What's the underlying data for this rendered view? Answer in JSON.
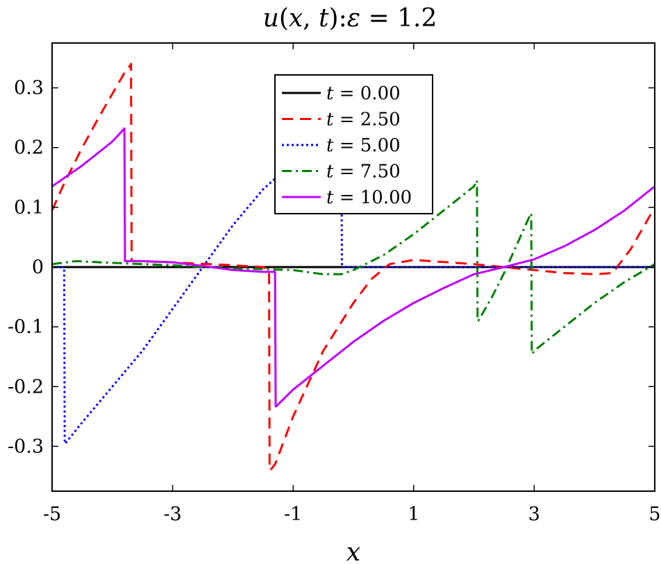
{
  "chart_data": {
    "type": "line",
    "title": "u(x,t): ε = 1.2",
    "title_parts": {
      "func": "u",
      "args_open": "(",
      "x": "x",
      "comma": ", ",
      "t": "t",
      "args_close": "):",
      "eps": "ε",
      "eq": " = 1.2"
    },
    "xlabel": "x",
    "ylabel": "",
    "xlim": [
      -5,
      5
    ],
    "ylim": [
      -0.375,
      0.375
    ],
    "xticks": [
      -5,
      -3,
      -1,
      1,
      3,
      5
    ],
    "xtick_labels": [
      "-5",
      "-3",
      "-1",
      "1",
      "3",
      "5"
    ],
    "yticks": [
      0.3,
      0.2,
      0.1,
      0,
      -0.1,
      -0.2,
      -0.3
    ],
    "ytick_labels": [
      "0.3",
      "0.2",
      "0.1",
      "0",
      "-0.1",
      "-0.2",
      "-0.3"
    ],
    "grid": false,
    "legend_position": "top-center",
    "series": [
      {
        "name": "t = 0.00",
        "label_var": "t",
        "label_val": " = 0.00",
        "color": "#000000",
        "dash": "solid",
        "x": [
          -5,
          5
        ],
        "y": [
          0,
          0
        ]
      },
      {
        "name": "t = 2.50",
        "label_var": "t",
        "label_val": " = 2.50",
        "color": "#ff0000",
        "dash": "dashed",
        "x": [
          -5,
          -4.8,
          -4.5,
          -4.2,
          -4.0,
          -3.8,
          -3.7,
          -3.69,
          -3.68,
          -3.6,
          -3.0,
          -2.0,
          -1.5,
          -1.4,
          -1.39,
          -1.38,
          -1.3,
          -1.0,
          -0.5,
          0,
          0.3,
          0.6,
          1.0,
          2.0,
          3.0,
          3.5,
          4.0,
          4.3,
          4.6,
          5.0
        ],
        "y": [
          0.095,
          0.14,
          0.2,
          0.255,
          0.29,
          0.325,
          0.338,
          0.34,
          0.01,
          0.01,
          0.008,
          0.003,
          0.0,
          -0.005,
          -0.34,
          -0.34,
          -0.33,
          -0.25,
          -0.14,
          -0.06,
          -0.02,
          0.005,
          0.012,
          0.005,
          -0.005,
          -0.01,
          -0.012,
          -0.01,
          0.03,
          0.1
        ]
      },
      {
        "name": "t = 5.00",
        "label_var": "t",
        "label_val": " = 5.00",
        "color": "#0000ff",
        "dash": "dotted",
        "x": [
          -5,
          -4.8,
          -4.79,
          -4.78,
          -4.5,
          -4.0,
          -3.5,
          -3.0,
          -2.5,
          -2.0,
          -1.5,
          -1.0,
          -0.5,
          -0.2,
          -0.19,
          -0.18,
          0.5,
          2.0,
          4.0,
          5.0
        ],
        "y": [
          0,
          0,
          -0.295,
          -0.295,
          -0.26,
          -0.2,
          -0.14,
          -0.07,
          0.0,
          0.07,
          0.13,
          0.175,
          0.21,
          0.23,
          0.0,
          0.0,
          0.0,
          0.0,
          0.0,
          0.0
        ],
        "hidden_ranges": [
          [
            -1.15,
            0.1
          ]
        ]
      },
      {
        "name": "t = 7.50",
        "label_var": "t",
        "label_val": " = 7.50",
        "color": "#008000",
        "dash": "dashdot",
        "x": [
          -5,
          -4.6,
          -4.2,
          -3.5,
          -3.0,
          -2.5,
          -2.0,
          -1.0,
          -0.5,
          -0.2,
          0.0,
          0.5,
          1.0,
          1.5,
          2.0,
          2.05,
          2.06,
          2.07,
          2.1,
          2.3,
          2.5,
          2.7,
          2.9,
          2.95,
          2.96,
          2.97,
          3.0,
          3.5,
          4.0,
          4.5,
          5.0
        ],
        "y": [
          0.005,
          0.01,
          0.008,
          0.005,
          0.003,
          0.0,
          -0.002,
          -0.005,
          -0.012,
          -0.012,
          -0.005,
          0.02,
          0.055,
          0.095,
          0.135,
          0.145,
          -0.09,
          -0.09,
          -0.085,
          -0.05,
          -0.01,
          0.035,
          0.08,
          0.09,
          -0.145,
          -0.145,
          -0.14,
          -0.1,
          -0.06,
          -0.025,
          0.005
        ]
      },
      {
        "name": "t = 10.00",
        "label_var": "t",
        "label_val": " = 10.00",
        "color": "#bf00ff",
        "dash": "solid",
        "x": [
          -5,
          -4.5,
          -4.0,
          -3.8,
          -3.79,
          -3.78,
          -3.5,
          -3.0,
          -2.5,
          -2.0,
          -1.5,
          -1.3,
          -1.29,
          -1.28,
          -1.2,
          -1.0,
          -0.5,
          0.0,
          0.5,
          1.0,
          1.5,
          2.0,
          2.5,
          3.0,
          3.5,
          4.0,
          4.5,
          5.0
        ],
        "y": [
          0.135,
          0.17,
          0.21,
          0.232,
          0.01,
          0.01,
          0.01,
          0.008,
          0.002,
          -0.005,
          -0.008,
          -0.008,
          -0.233,
          -0.233,
          -0.225,
          -0.205,
          -0.165,
          -0.125,
          -0.09,
          -0.06,
          -0.035,
          -0.012,
          0.0,
          0.013,
          0.035,
          0.062,
          0.095,
          0.135
        ]
      }
    ]
  }
}
